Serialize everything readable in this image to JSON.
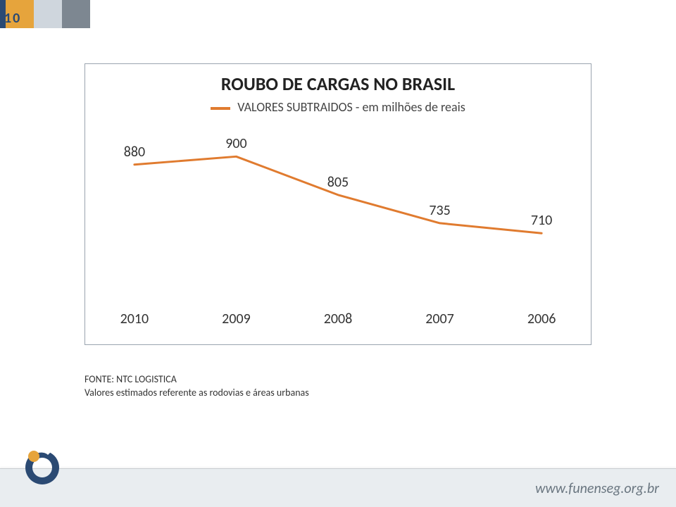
{
  "slide_number": "10",
  "chart": {
    "type": "line",
    "title": "ROUBO DE CARGAS NO BRASIL",
    "legend_label": "VALORES SUBTRAIDOS - em milhões de reais",
    "legend_swatch_color": "#e07b2f",
    "line_color": "#e07b2f",
    "line_width": 3,
    "categories": [
      "2010",
      "2009",
      "2008",
      "2007",
      "2006"
    ],
    "values": [
      880,
      900,
      805,
      735,
      710
    ],
    "ymin": 600,
    "ymax": 920,
    "border_color": "#9aa4af",
    "background_color": "#ffffff",
    "title_fontsize": 26,
    "legend_fontsize": 18,
    "label_fontsize": 20,
    "xlabel_fontsize": 20
  },
  "source": {
    "line1": "FONTE: NTC LOGISTICA",
    "line2": "Valores estimados referente as rodovias e áreas urbanas"
  },
  "footer": {
    "url": "www.funenseg.org.br",
    "bar_bg": "#e9edf0",
    "url_color": "#6a7680"
  },
  "top_accent_colors": {
    "a": "#2b4a73",
    "b": "#e6a43c",
    "c": "#cfd6dd",
    "d": "#7d8791"
  },
  "logo_colors": {
    "ring": "#2b4a73",
    "ball": "#e6a43c"
  }
}
